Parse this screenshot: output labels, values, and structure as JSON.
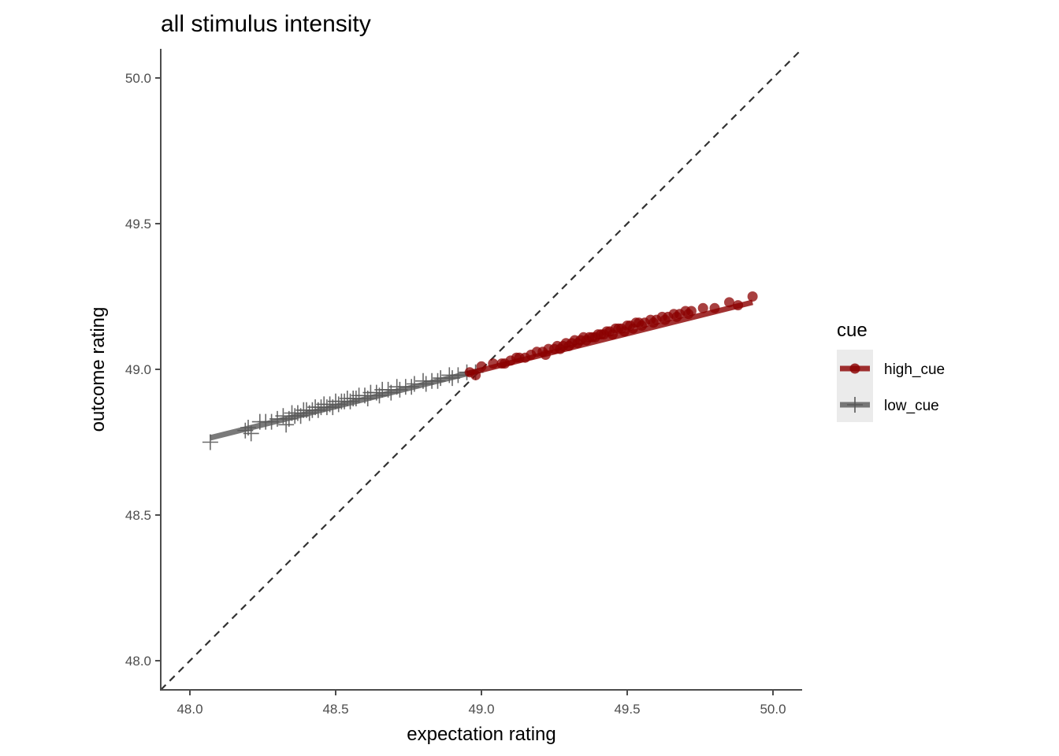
{
  "chart_data": {
    "type": "scatter",
    "title": "all stimulus intensity",
    "xlabel": "expectation rating",
    "ylabel": "outcome rating",
    "xlim": [
      47.9,
      50.1
    ],
    "ylim": [
      47.9,
      50.1
    ],
    "xticks": [
      48.0,
      48.5,
      49.0,
      49.5,
      50.0
    ],
    "xtick_labels": [
      "48.0",
      "48.5",
      "49.0",
      "49.5",
      "50.0"
    ],
    "yticks": [
      48.0,
      48.5,
      49.0,
      49.5,
      50.0
    ],
    "ytick_labels": [
      "48.0",
      "48.5",
      "49.0",
      "49.5",
      "50.0"
    ],
    "grid": false,
    "reference_line": {
      "type": "identity",
      "style": "dashed",
      "color": "#333333"
    },
    "legend": {
      "title": "cue",
      "placement": "right"
    },
    "series": [
      {
        "name": "high_cue",
        "color": "#8b0000",
        "marker": "circle",
        "fit_line": {
          "x": [
            48.95,
            49.93
          ],
          "y": [
            48.985,
            49.23
          ]
        },
        "points": [
          [
            48.96,
            48.99
          ],
          [
            48.98,
            48.98
          ],
          [
            49.0,
            49.01
          ],
          [
            49.04,
            49.02
          ],
          [
            49.07,
            49.02
          ],
          [
            49.1,
            49.03
          ],
          [
            49.12,
            49.04
          ],
          [
            49.15,
            49.04
          ],
          [
            49.17,
            49.05
          ],
          [
            49.19,
            49.06
          ],
          [
            49.21,
            49.06
          ],
          [
            49.23,
            49.07
          ],
          [
            49.25,
            49.07
          ],
          [
            49.26,
            49.08
          ],
          [
            49.28,
            49.08
          ],
          [
            49.29,
            49.09
          ],
          [
            49.31,
            49.09
          ],
          [
            49.32,
            49.1
          ],
          [
            49.34,
            49.1
          ],
          [
            49.35,
            49.11
          ],
          [
            49.37,
            49.11
          ],
          [
            49.38,
            49.11
          ],
          [
            49.4,
            49.12
          ],
          [
            49.41,
            49.12
          ],
          [
            49.43,
            49.13
          ],
          [
            49.44,
            49.13
          ],
          [
            49.46,
            49.14
          ],
          [
            49.47,
            49.14
          ],
          [
            49.48,
            49.14
          ],
          [
            49.5,
            49.15
          ],
          [
            49.51,
            49.15
          ],
          [
            49.53,
            49.16
          ],
          [
            49.54,
            49.16
          ],
          [
            49.56,
            49.16
          ],
          [
            49.58,
            49.17
          ],
          [
            49.6,
            49.17
          ],
          [
            49.62,
            49.18
          ],
          [
            49.64,
            49.18
          ],
          [
            49.66,
            49.19
          ],
          [
            49.68,
            49.19
          ],
          [
            49.7,
            49.2
          ],
          [
            49.72,
            49.2
          ],
          [
            49.76,
            49.21
          ],
          [
            49.8,
            49.21
          ],
          [
            49.85,
            49.23
          ],
          [
            49.88,
            49.22
          ],
          [
            49.93,
            49.25
          ],
          [
            49.08,
            49.02
          ],
          [
            49.13,
            49.04
          ],
          [
            49.22,
            49.05
          ],
          [
            49.27,
            49.07
          ],
          [
            49.3,
            49.08
          ],
          [
            49.33,
            49.09
          ],
          [
            49.36,
            49.1
          ],
          [
            49.39,
            49.11
          ],
          [
            49.42,
            49.12
          ],
          [
            49.45,
            49.12
          ],
          [
            49.49,
            49.13
          ],
          [
            49.52,
            49.14
          ],
          [
            49.55,
            49.15
          ],
          [
            49.59,
            49.16
          ],
          [
            49.63,
            49.17
          ],
          [
            49.67,
            49.18
          ],
          [
            49.71,
            49.19
          ]
        ]
      },
      {
        "name": "low_cue",
        "color": "#595959",
        "marker": "plus",
        "fit_line": {
          "x": [
            48.07,
            48.99
          ],
          "y": [
            48.765,
            48.995
          ]
        },
        "points": [
          [
            48.07,
            48.75
          ],
          [
            48.19,
            48.79
          ],
          [
            48.2,
            48.8
          ],
          [
            48.21,
            48.78
          ],
          [
            48.24,
            48.82
          ],
          [
            48.26,
            48.82
          ],
          [
            48.28,
            48.82
          ],
          [
            48.3,
            48.83
          ],
          [
            48.32,
            48.84
          ],
          [
            48.34,
            48.83
          ],
          [
            48.35,
            48.85
          ],
          [
            48.37,
            48.85
          ],
          [
            48.39,
            48.86
          ],
          [
            48.4,
            48.86
          ],
          [
            48.42,
            48.86
          ],
          [
            48.43,
            48.87
          ],
          [
            48.45,
            48.87
          ],
          [
            48.46,
            48.88
          ],
          [
            48.48,
            48.88
          ],
          [
            48.5,
            48.89
          ],
          [
            48.52,
            48.89
          ],
          [
            48.54,
            48.9
          ],
          [
            48.56,
            48.9
          ],
          [
            48.58,
            48.91
          ],
          [
            48.6,
            48.91
          ],
          [
            48.62,
            48.92
          ],
          [
            48.64,
            48.92
          ],
          [
            48.66,
            48.93
          ],
          [
            48.68,
            48.93
          ],
          [
            48.71,
            48.94
          ],
          [
            48.74,
            48.94
          ],
          [
            48.77,
            48.95
          ],
          [
            48.8,
            48.96
          ],
          [
            48.83,
            48.96
          ],
          [
            48.86,
            48.97
          ],
          [
            48.89,
            48.98
          ],
          [
            48.92,
            48.98
          ],
          [
            48.95,
            48.99
          ],
          [
            48.98,
            48.99
          ],
          [
            48.33,
            48.81
          ],
          [
            48.36,
            48.84
          ],
          [
            48.38,
            48.84
          ],
          [
            48.41,
            48.85
          ],
          [
            48.44,
            48.86
          ],
          [
            48.47,
            48.87
          ],
          [
            48.49,
            48.87
          ],
          [
            48.51,
            48.88
          ],
          [
            48.53,
            48.89
          ],
          [
            48.55,
            48.89
          ],
          [
            48.57,
            48.9
          ],
          [
            48.61,
            48.9
          ],
          [
            48.65,
            48.91
          ],
          [
            48.69,
            48.92
          ],
          [
            48.72,
            48.93
          ],
          [
            48.76,
            48.94
          ],
          [
            48.81,
            48.95
          ],
          [
            48.85,
            48.96
          ],
          [
            48.9,
            48.97
          ]
        ]
      }
    ]
  }
}
